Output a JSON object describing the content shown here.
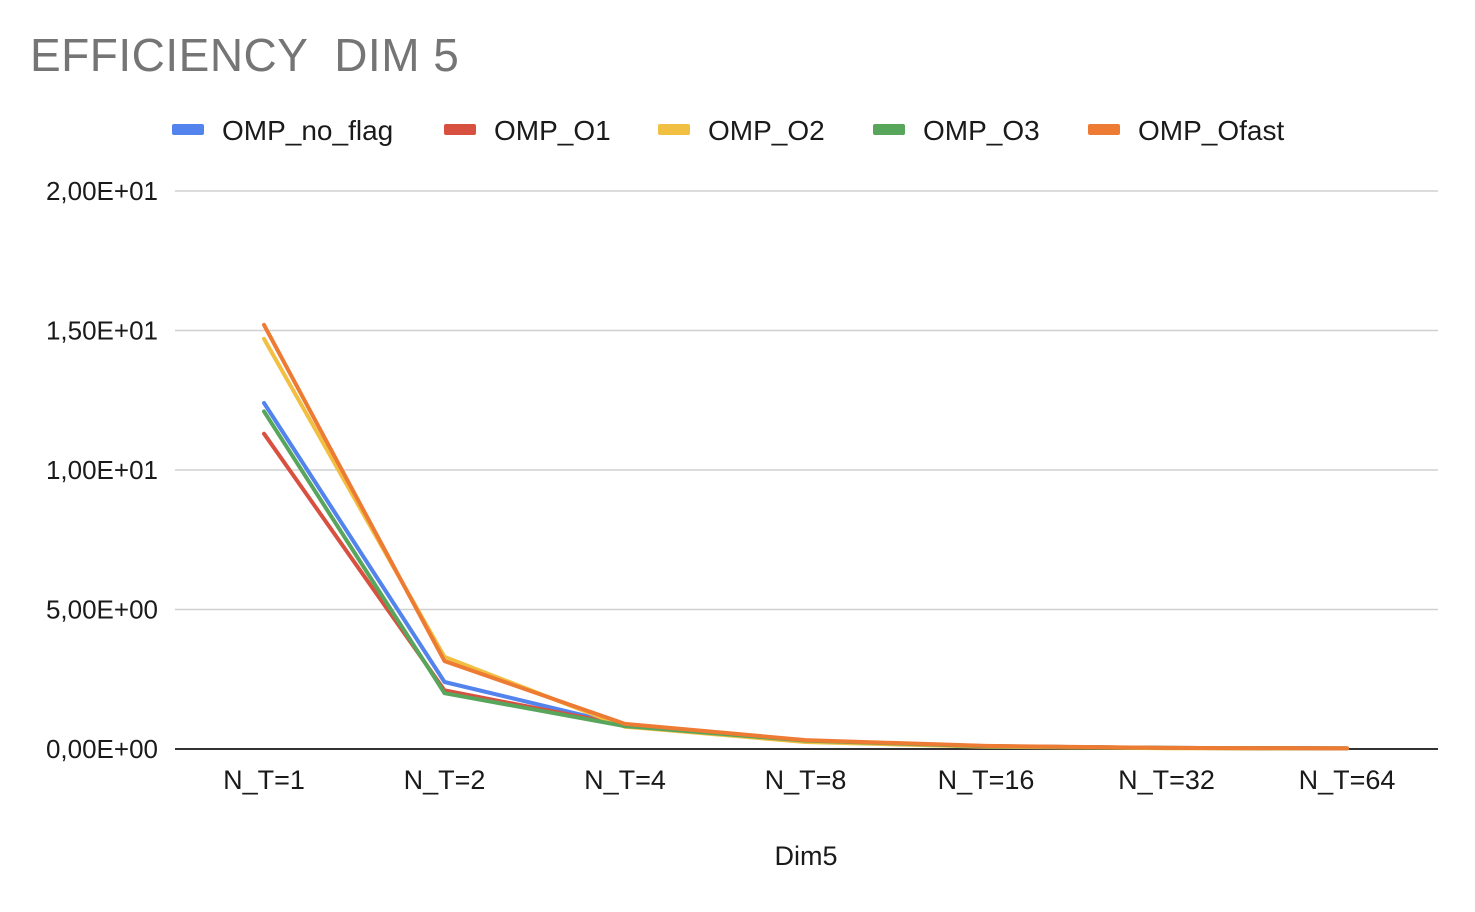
{
  "chart_data": {
    "type": "line",
    "title": "EFFICIENCY  DIM 5",
    "xlabel": "Dim5",
    "ylabel": "",
    "categories": [
      "N_T=1",
      "N_T=2",
      "N_T=4",
      "N_T=8",
      "N_T=16",
      "N_T=32",
      "N_T=64"
    ],
    "ylim": [
      0,
      20
    ],
    "yticks": [
      {
        "value": 0,
        "label": "0,00E+00"
      },
      {
        "value": 5,
        "label": "5,00E+00"
      },
      {
        "value": 10,
        "label": "1,00E+01"
      },
      {
        "value": 15,
        "label": "1,50E+01"
      },
      {
        "value": 20,
        "label": "2,00E+01"
      }
    ],
    "grid": true,
    "legend_position": "top",
    "series": [
      {
        "name": "OMP_no_flag",
        "color": "#5383ec",
        "values": [
          12.4,
          2.4,
          0.85,
          0.3,
          0.1,
          0.04,
          0.02
        ]
      },
      {
        "name": "OMP_O1",
        "color": "#d85140",
        "values": [
          11.3,
          2.1,
          0.85,
          0.3,
          0.1,
          0.04,
          0.02
        ]
      },
      {
        "name": "OMP_O2",
        "color": "#f1bf42",
        "values": [
          14.7,
          3.3,
          0.8,
          0.25,
          0.08,
          0.03,
          0.02
        ]
      },
      {
        "name": "OMP_O3",
        "color": "#58a55c",
        "values": [
          12.1,
          2.0,
          0.82,
          0.3,
          0.1,
          0.04,
          0.02
        ]
      },
      {
        "name": "OMP_Ofast",
        "color": "#ed7b33",
        "values": [
          15.2,
          3.15,
          0.9,
          0.32,
          0.11,
          0.04,
          0.02
        ]
      }
    ]
  }
}
